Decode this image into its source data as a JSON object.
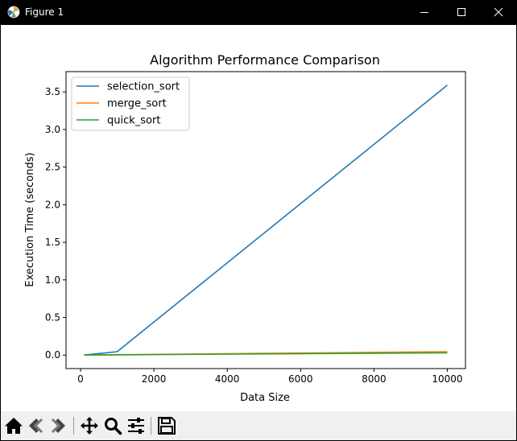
{
  "window": {
    "title": "Figure 1"
  },
  "toolbar": {
    "tools": [
      "home-icon",
      "back-icon",
      "forward-icon",
      "pan-icon",
      "zoom-icon",
      "configure-subplots-icon",
      "save-icon"
    ]
  },
  "chart_data": {
    "type": "line",
    "title": "Algorithm Performance Comparison",
    "xlabel": "Data Size",
    "ylabel": "Execution Time (seconds)",
    "x": [
      100,
      1000,
      10000
    ],
    "xlim": [
      -395,
      10495
    ],
    "ylim": [
      -0.1795,
      3.7695
    ],
    "xticks": [
      0,
      2000,
      4000,
      6000,
      8000,
      10000
    ],
    "xtick_labels": [
      "0",
      "2000",
      "4000",
      "6000",
      "8000",
      "10000"
    ],
    "yticks": [
      0.0,
      0.5,
      1.0,
      1.5,
      2.0,
      2.5,
      3.0,
      3.5
    ],
    "ytick_labels": [
      "0.0",
      "0.5",
      "1.0",
      "1.5",
      "2.0",
      "2.5",
      "3.0",
      "3.5"
    ],
    "grid": false,
    "legend_position": "upper left",
    "series": [
      {
        "name": "selection_sort",
        "color": "#1f77b4",
        "values": [
          0.0,
          0.045,
          3.59
        ]
      },
      {
        "name": "merge_sort",
        "color": "#ff7f0e",
        "values": [
          0.0,
          0.005,
          0.045
        ]
      },
      {
        "name": "quick_sort",
        "color": "#2ca02c",
        "values": [
          0.0,
          0.003,
          0.03
        ]
      }
    ]
  }
}
